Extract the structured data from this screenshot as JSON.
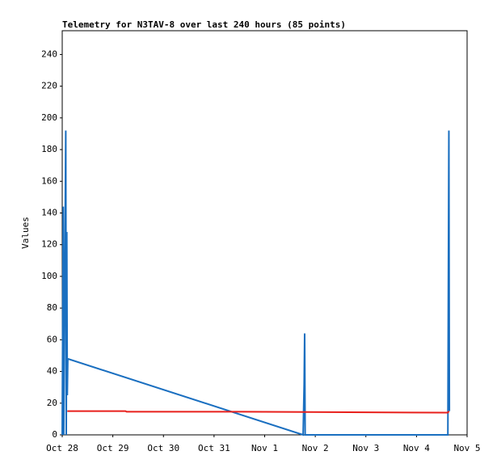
{
  "chart_data": {
    "type": "line",
    "title": "Telemetry for N3TAV-8 over last 240 hours (85 points)",
    "y_label": "Values",
    "xlim": [
      0,
      8
    ],
    "xticks": [
      {
        "value": 0,
        "label": "Oct 28"
      },
      {
        "value": 1,
        "label": "Oct 29"
      },
      {
        "value": 2,
        "label": "Oct 30"
      },
      {
        "value": 3,
        "label": "Oct 31"
      },
      {
        "value": 4,
        "label": "Nov 1"
      },
      {
        "value": 5,
        "label": "Nov 2"
      },
      {
        "value": 6,
        "label": "Nov 3"
      },
      {
        "value": 7,
        "label": "Nov 4"
      },
      {
        "value": 8,
        "label": "Nov 5"
      }
    ],
    "ylim": [
      0,
      255
    ],
    "yticks": [
      0,
      20,
      40,
      60,
      80,
      100,
      120,
      140,
      160,
      180,
      200,
      220,
      240
    ],
    "grid": false,
    "series": [
      {
        "color": "#1a6fc0",
        "x": [
          0.0,
          0.02,
          0.03,
          0.07,
          0.08,
          0.09,
          0.1,
          0.11,
          4.76,
          4.78,
          4.79,
          4.8,
          7.62,
          7.64,
          7.65
        ],
        "values": [
          0,
          144,
          0,
          192,
          0,
          128,
          25,
          48,
          0,
          32,
          64,
          0,
          0,
          192,
          15
        ]
      },
      {
        "color": "#e8201c",
        "x": [
          0.1,
          1.25,
          1.27,
          3.55,
          7.62,
          7.64
        ],
        "values": [
          15,
          15,
          14.6,
          14.6,
          14,
          15
        ]
      }
    ]
  }
}
